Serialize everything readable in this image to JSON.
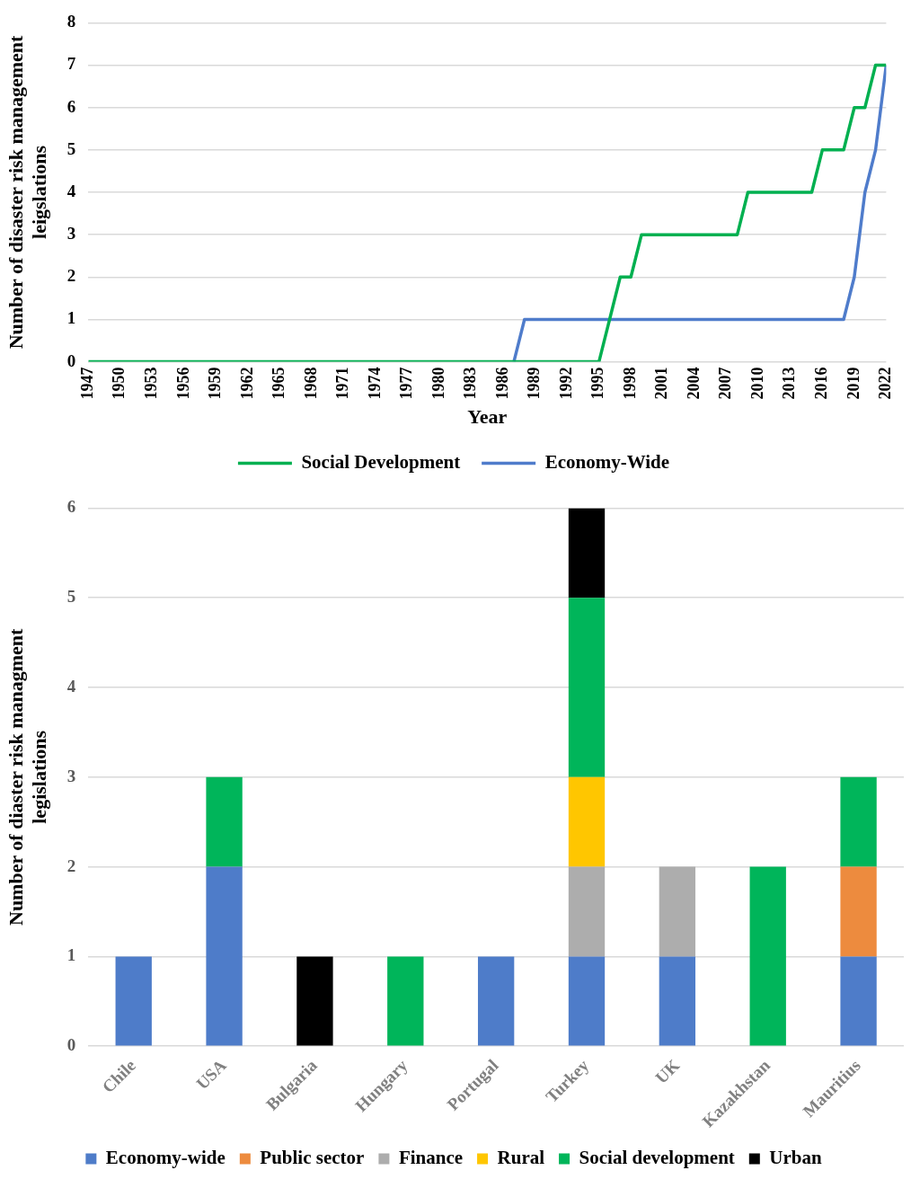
{
  "chart_data": [
    {
      "type": "line",
      "xlabel": "Year",
      "ylabel": "Number of disaster risk management leigslations",
      "x": [
        1947,
        1948,
        1949,
        1950,
        1951,
        1952,
        1953,
        1954,
        1955,
        1956,
        1957,
        1958,
        1959,
        1960,
        1961,
        1962,
        1963,
        1964,
        1965,
        1966,
        1967,
        1968,
        1969,
        1970,
        1971,
        1972,
        1973,
        1974,
        1975,
        1976,
        1977,
        1978,
        1979,
        1980,
        1981,
        1982,
        1983,
        1984,
        1985,
        1986,
        1987,
        1988,
        1989,
        1990,
        1991,
        1992,
        1993,
        1994,
        1995,
        1996,
        1997,
        1998,
        1999,
        2000,
        2001,
        2002,
        2003,
        2004,
        2005,
        2006,
        2007,
        2008,
        2009,
        2010,
        2011,
        2012,
        2013,
        2014,
        2015,
        2016,
        2017,
        2018,
        2019,
        2020,
        2021,
        2022
      ],
      "series": [
        {
          "name": "Economy-Wide",
          "color": "#4f7ccb",
          "values": [
            null,
            null,
            null,
            null,
            null,
            null,
            null,
            null,
            null,
            null,
            null,
            null,
            null,
            null,
            null,
            null,
            null,
            null,
            null,
            null,
            null,
            null,
            null,
            null,
            null,
            null,
            null,
            null,
            null,
            null,
            null,
            null,
            null,
            null,
            null,
            null,
            null,
            null,
            null,
            null,
            0,
            1,
            1,
            1,
            1,
            1,
            1,
            1,
            1,
            1,
            1,
            1,
            1,
            1,
            1,
            1,
            1,
            1,
            1,
            1,
            1,
            1,
            1,
            1,
            1,
            1,
            1,
            1,
            1,
            1,
            1,
            1,
            2,
            4,
            5,
            7
          ]
        },
        {
          "name": "Social Development",
          "color": "#00b050",
          "values": [
            0,
            0,
            0,
            0,
            0,
            0,
            0,
            0,
            0,
            0,
            0,
            0,
            0,
            0,
            0,
            0,
            0,
            0,
            0,
            0,
            0,
            0,
            0,
            0,
            0,
            0,
            0,
            0,
            0,
            0,
            0,
            0,
            0,
            0,
            0,
            0,
            0,
            0,
            0,
            0,
            0,
            0,
            0,
            0,
            0,
            0,
            0,
            0,
            0,
            1,
            2,
            2,
            3,
            3,
            3,
            3,
            3,
            3,
            3,
            3,
            3,
            3,
            4,
            4,
            4,
            4,
            4,
            4,
            4,
            5,
            5,
            5,
            6,
            6,
            7,
            7
          ]
        }
      ],
      "xlim": [
        1947,
        2022
      ],
      "xticks": [
        1947,
        1950,
        1953,
        1956,
        1959,
        1962,
        1965,
        1968,
        1971,
        1974,
        1977,
        1980,
        1983,
        1986,
        1989,
        1992,
        1995,
        1998,
        2001,
        2004,
        2007,
        2010,
        2013,
        2016,
        2019,
        2022
      ],
      "ylim": [
        0,
        8
      ],
      "yticks": [
        0,
        1,
        2,
        3,
        4,
        5,
        6,
        7,
        8
      ],
      "grid": "y",
      "legend": "bottom",
      "marker": "none"
    },
    {
      "type": "bar",
      "ylabel": "Number of diaster risk managment legislations",
      "categories": [
        "Chile",
        "USA",
        "Bulgaria",
        "Hungary",
        "Portugal",
        "Turkey",
        "UK",
        "Kazakhstan",
        "Mauritius"
      ],
      "stacked": true,
      "series": [
        {
          "name": "Economy-wide",
          "color": "#4e7cc9",
          "values": [
            1,
            2,
            0,
            0,
            1,
            1,
            1,
            0,
            1
          ]
        },
        {
          "name": "Public sector",
          "color": "#ed8b3e",
          "values": [
            0,
            0,
            0,
            0,
            0,
            0,
            0,
            0,
            1
          ]
        },
        {
          "name": "Finance",
          "color": "#adadad",
          "values": [
            0,
            0,
            0,
            0,
            0,
            1,
            1,
            0,
            0
          ]
        },
        {
          "name": "Rural",
          "color": "#ffc600",
          "values": [
            0,
            0,
            0,
            0,
            0,
            1,
            0,
            0,
            0
          ]
        },
        {
          "name": "Social development",
          "color": "#00b55a",
          "values": [
            0,
            1,
            0,
            1,
            0,
            2,
            0,
            2,
            1
          ]
        },
        {
          "name": "Urban",
          "color": "#000000",
          "values": [
            0,
            0,
            1,
            0,
            0,
            1,
            0,
            0,
            0
          ]
        }
      ],
      "ylim": [
        0,
        6
      ],
      "yticks": [
        0,
        1,
        2,
        3,
        4,
        5,
        6
      ],
      "grid": "y",
      "legend": "bottom"
    }
  ]
}
